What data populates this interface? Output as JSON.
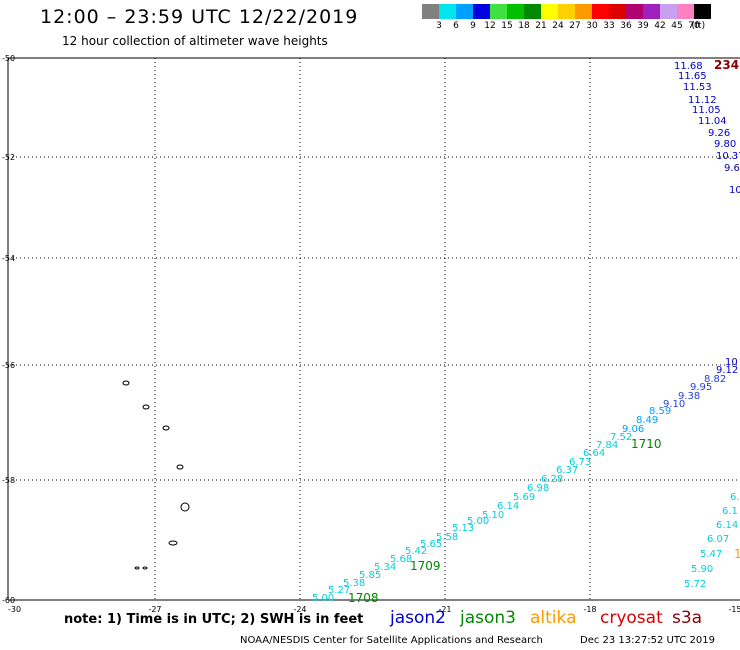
{
  "title": "12:00 – 23:59 UTC 12/22/2019",
  "subtitle": "12 hour collection of altimeter wave heights",
  "legend": {
    "unit": "(ft)",
    "bins": [
      {
        "color": "#808080",
        "label": "3"
      },
      {
        "color": "#00e5ee",
        "label": "6"
      },
      {
        "color": "#00a0ff",
        "label": "9"
      },
      {
        "color": "#0000e0",
        "label": "12"
      },
      {
        "color": "#40e040",
        "label": "15"
      },
      {
        "color": "#00c000",
        "label": "18"
      },
      {
        "color": "#008800",
        "label": "21"
      },
      {
        "color": "#ffff00",
        "label": "24"
      },
      {
        "color": "#ffd000",
        "label": "27"
      },
      {
        "color": "#ff9900",
        "label": "30"
      },
      {
        "color": "#ff0000",
        "label": "33"
      },
      {
        "color": "#dd0000",
        "label": "36"
      },
      {
        "color": "#b00070",
        "label": "39"
      },
      {
        "color": "#a020c0",
        "label": "42"
      },
      {
        "color": "#c8a0f0",
        "label": "45"
      },
      {
        "color": "#ff80c0",
        "label": "70"
      },
      {
        "color": "#000000",
        "label": ""
      }
    ]
  },
  "axes": {
    "lat_labels": [
      "-50",
      "-52",
      "-54",
      "-56",
      "-58",
      "-60"
    ],
    "lon_labels": [
      "-30",
      "-27",
      "-24",
      "-21",
      "-18",
      "-15"
    ]
  },
  "note": "note: 1) Time is in UTC; 2) SWH is in feet",
  "satellites": [
    {
      "name": "jason2",
      "color": "#0000cc"
    },
    {
      "name": "jason3",
      "color": "#008800"
    },
    {
      "name": "altika",
      "color": "#ff9900"
    },
    {
      "name": "cryosat",
      "color": "#dd0000"
    },
    {
      "name": "s3a",
      "color": "#880000"
    }
  ],
  "credit": "NOAA/NESDIS Center for Satellite Applications and Research",
  "stamp": "Dec 23 13:27:52 UTC 2019",
  "tracks": {
    "top_right_time": {
      "text": "234",
      "color": "#880000"
    },
    "top_right_values": [
      "11.68",
      "11.65",
      "11.53",
      "11.12",
      "11.05",
      "11.04",
      "9.26",
      "9.80",
      "10.37",
      "9.6",
      "10"
    ],
    "upper_track_values": [
      "10",
      "9.12",
      "8.82",
      "9.95",
      "9.38",
      "9.10"
    ],
    "diagonal_values": [
      "8.59",
      "8.49",
      "9.06",
      "7.52",
      "7.84",
      "6.64",
      "6.73",
      "6.37",
      "6.28",
      "6.98",
      "5.69",
      "6.14",
      "5.10",
      "5.00",
      "5.13",
      "5.58",
      "5.65",
      "5.42",
      "5.68",
      "5.34",
      "5.85",
      "5.38",
      "5.27",
      "5.00"
    ],
    "diagonal_times": [
      "1710",
      "1709",
      "1708"
    ],
    "right_values": [
      "6.",
      "6.1",
      "6.14",
      "6.07",
      "5.47",
      "5.90",
      "5.72"
    ],
    "right_edge_time": {
      "text": "1",
      "color": "#ff9900"
    }
  }
}
